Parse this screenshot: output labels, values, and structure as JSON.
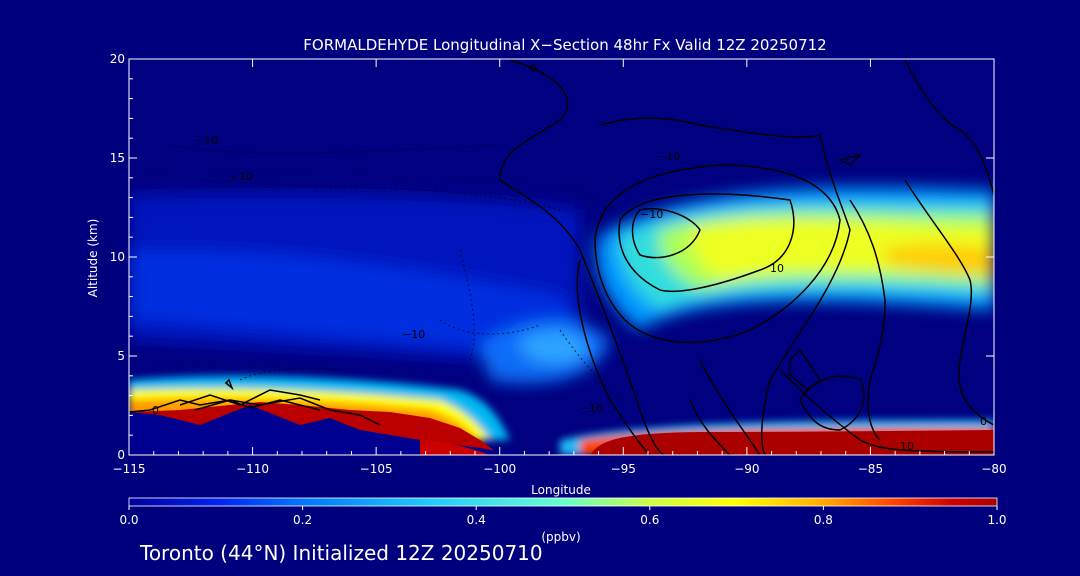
{
  "chart_data": {
    "type": "heatmap",
    "title": "FORMALDEHYDE Longitudinal X−Section 48hr  Fx Valid 12Z 20250712",
    "xlabel": "Longitude",
    "ylabel": "Altitude (km)",
    "x_ticks": [
      "−115",
      "−110",
      "−105",
      "−100",
      "−95",
      "−90",
      "−85",
      "−80"
    ],
    "y_ticks": [
      "0",
      "5",
      "10",
      "15",
      "20"
    ],
    "xlim": [
      -115,
      -80
    ],
    "ylim": [
      0,
      20
    ],
    "colorbar": {
      "label": "(ppbv)",
      "ticks": [
        "0.0",
        "0.2",
        "0.4",
        "0.6",
        "0.8",
        "1.0"
      ],
      "range": [
        0.0,
        1.0
      ],
      "colors": [
        "#000099",
        "#0022ee",
        "#0077ff",
        "#22ccff",
        "#66ffcc",
        "#ccff44",
        "#ffff00",
        "#ffaa00",
        "#ff4400",
        "#cc0000",
        "#aa0000"
      ]
    },
    "contour_labels": [
      "−10",
      "−10",
      "−10",
      "0",
      "−10",
      "−10",
      "10",
      "−10",
      "0",
      "10",
      "0"
    ],
    "grid": false,
    "legend": "none"
  },
  "footer": "Toronto (44°N) Initialized 12Z 20250710"
}
